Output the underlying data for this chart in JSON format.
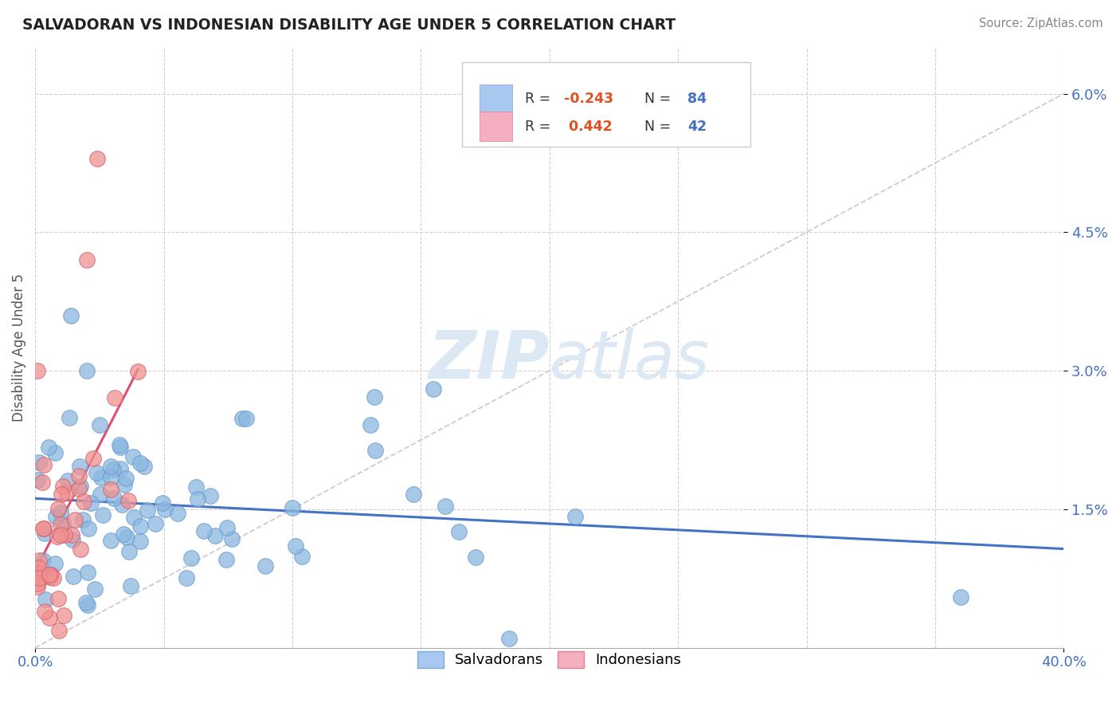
{
  "title": "SALVADORAN VS INDONESIAN DISABILITY AGE UNDER 5 CORRELATION CHART",
  "source": "Source: ZipAtlas.com",
  "ylabel": "Disability Age Under 5",
  "xlim": [
    0.0,
    0.4
  ],
  "ylim": [
    -0.002,
    0.068
  ],
  "plot_ylim": [
    0.0,
    0.065
  ],
  "ytick_vals": [
    0.015,
    0.03,
    0.045,
    0.06
  ],
  "ytick_labels": [
    "1.5%",
    "3.0%",
    "4.5%",
    "6.0%"
  ],
  "xtick_vals": [
    0.0,
    0.4
  ],
  "xtick_labels": [
    "0.0%",
    "40.0%"
  ],
  "blue_dot": "#8ab8e0",
  "blue_edge": "#6699cc",
  "pink_dot": "#f09090",
  "pink_edge": "#d06070",
  "blue_line": "#4472c4",
  "pink_line": "#e05070",
  "diag_color": "#cccccc",
  "grid_color": "#d0d0d0",
  "watermark_color": "#dce8f4",
  "legend_r_color": "#e05020",
  "legend_n_color": "#4472c4",
  "title_color": "#222222",
  "source_color": "#888888",
  "ylabel_color": "#555555",
  "tick_color": "#4472c4",
  "background": "#ffffff"
}
